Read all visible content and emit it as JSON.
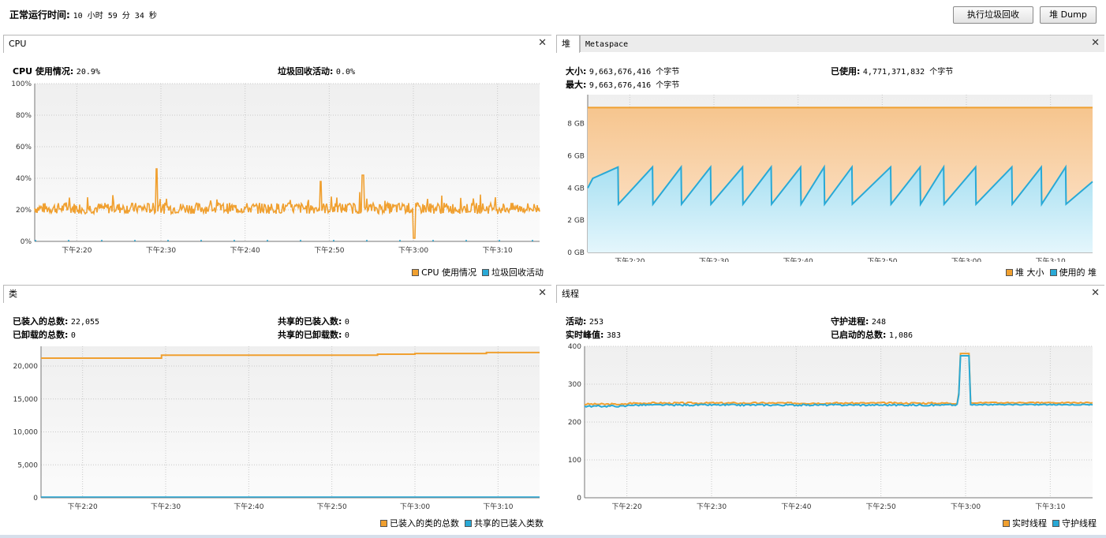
{
  "header": {
    "uptime_label": "正常运行时间:",
    "uptime_value": "10 小时 59 分 34 秒",
    "gc_button": "执行垃圾回收",
    "dump_button": "堆 Dump"
  },
  "colors": {
    "orange": "#f0a030",
    "blue": "#29a9d6",
    "grid": "#c8c8c8"
  },
  "time_ticks": [
    "下午2:20",
    "下午2:30",
    "下午2:40",
    "下午2:50",
    "下午3:00",
    "下午3:10"
  ],
  "cpu_panel": {
    "tab": "CPU",
    "cpu_label": "CPU 使用情况:",
    "cpu_value": "20.9%",
    "gc_label": "垃圾回收活动:",
    "gc_value": "0.0%",
    "yticks": [
      "0%",
      "20%",
      "40%",
      "60%",
      "80%",
      "100%"
    ],
    "legend": [
      "CPU 使用情况",
      "垃圾回收活动"
    ],
    "chart_data": {
      "type": "line",
      "series": [
        {
          "name": "CPU 使用情况",
          "x": [
            "下午2:15",
            "下午2:20",
            "下午2:25",
            "下午2:29",
            "下午2:30",
            "下午2:35",
            "下午2:40",
            "下午2:45",
            "下午2:50",
            "下午2:55",
            "下午2:59",
            "下午3:00",
            "下午3:05",
            "下午3:10",
            "下午3:15"
          ],
          "values": [
            22,
            23,
            22,
            46,
            22,
            22,
            21,
            23,
            22,
            22,
            2,
            22,
            22,
            21,
            20
          ]
        },
        {
          "name": "垃圾回收活动",
          "x": [
            "下午2:15",
            "下午3:15"
          ],
          "values": [
            0,
            0
          ]
        }
      ],
      "ylim": [
        0,
        100
      ]
    }
  },
  "heap_panel": {
    "tab1": "堆",
    "tab2": "Metaspace",
    "size_label": "大小:",
    "size_value": "9,663,676,416 个字节",
    "used_label": "已使用:",
    "used_value": "4,771,371,832 个字节",
    "max_label": "最大:",
    "max_value": "9,663,676,416 个字节",
    "yticks": [
      "0 GB",
      "2 GB",
      "4 GB",
      "6 GB",
      "8 GB"
    ],
    "legend": [
      "堆 大小",
      "使用的 堆"
    ],
    "chart_data": {
      "type": "area",
      "series": [
        {
          "name": "堆 大小",
          "values": [
            9,
            9
          ]
        },
        {
          "name": "使用的 堆",
          "sawtooth_low": 3.0,
          "sawtooth_high": 5.3,
          "last": 4.4
        }
      ],
      "ylim": [
        0,
        9.5
      ]
    }
  },
  "class_panel": {
    "tab": "类",
    "loaded_label": "已装入的总数:",
    "loaded_value": "22,055",
    "unloaded_label": "已卸载的总数:",
    "unloaded_value": "0",
    "shared_loaded_label": "共享的已装入数:",
    "shared_loaded_value": "0",
    "shared_unloaded_label": "共享的已卸载数:",
    "shared_unloaded_value": "0",
    "yticks": [
      "0",
      "5,000",
      "10,000",
      "15,000",
      "20,000"
    ],
    "legend": [
      "已装入的类的总数",
      "共享的已装入类数"
    ],
    "chart_data": {
      "type": "line",
      "series": [
        {
          "name": "已装入的类的总数",
          "x": [
            "下午2:15",
            "下午2:29",
            "下午2:29",
            "下午2:55",
            "下午2:55",
            "下午3:00",
            "下午3:00",
            "下午3:09",
            "下午3:09",
            "下午3:15"
          ],
          "values": [
            21200,
            21200,
            21650,
            21650,
            21800,
            21800,
            21900,
            21900,
            22055,
            22055
          ]
        },
        {
          "name": "共享的已装入类数",
          "values": [
            0,
            0
          ]
        }
      ],
      "ylim": [
        0,
        23000
      ]
    }
  },
  "thread_panel": {
    "tab": "线程",
    "live_label": "活动:",
    "live_value": "253",
    "peak_label": "实时峰值:",
    "peak_value": "383",
    "daemon_label": "守护进程:",
    "daemon_value": "248",
    "started_label": "已启动的总数:",
    "started_value": "1,086",
    "yticks": [
      "0",
      "100",
      "200",
      "300",
      "400"
    ],
    "legend": [
      "实时线程",
      "守护线程"
    ],
    "chart_data": {
      "type": "line",
      "series": [
        {
          "name": "实时线程",
          "x": [
            "下午2:15",
            "下午2:59",
            "下午3:00",
            "下午3:01",
            "下午3:15"
          ],
          "values": [
            247,
            250,
            383,
            250,
            252
          ]
        },
        {
          "name": "守护线程",
          "x": [
            "下午2:15",
            "下午2:59",
            "下午3:00",
            "下午3:01",
            "下午3:15"
          ],
          "values": [
            242,
            244,
            375,
            245,
            248
          ]
        }
      ],
      "ylim": [
        0,
        400
      ]
    }
  }
}
